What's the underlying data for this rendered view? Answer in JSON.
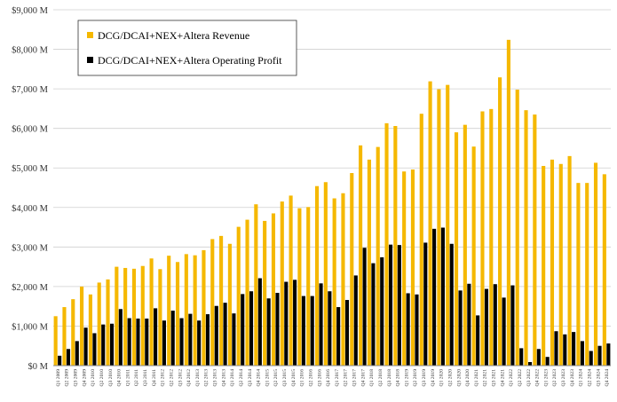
{
  "chart_data": {
    "type": "bar",
    "title": "",
    "xlabel": "",
    "ylabel": "",
    "ylim": [
      0,
      9000
    ],
    "ytick_values": [
      0,
      1000,
      2000,
      3000,
      4000,
      5000,
      6000,
      7000,
      8000,
      9000
    ],
    "ytick_labels": [
      "$0 M",
      "$1,000 M",
      "$2,000 M",
      "$3,000 M",
      "$4,000 M",
      "$5,000 M",
      "$6,000 M",
      "$7,000 M",
      "$8,000 M",
      "$9,000 M"
    ],
    "grid": "horizontal",
    "legend_position": "top-left",
    "categories": [
      "Q1 2009",
      "Q2 2009",
      "Q3 2009",
      "Q4 2009",
      "Q1 2010",
      "Q2 2010",
      "Q3 2010",
      "Q4 2010",
      "Q1 2011",
      "Q2 2011",
      "Q3 2011",
      "Q4 2011",
      "Q1 2012",
      "Q2 2012",
      "Q3 2012",
      "Q4 2012",
      "Q1 2013",
      "Q2 2013",
      "Q3 2013",
      "Q4 2013",
      "Q1 2014",
      "Q2 2014",
      "Q3 2014",
      "Q4 2014",
      "Q1 2015",
      "Q2 2015",
      "Q3 2015",
      "Q4 2015",
      "Q1 2016",
      "Q2 2016",
      "Q3 2016",
      "Q4 2016",
      "Q1 2017",
      "Q2 2017",
      "Q3 2017",
      "Q4 2017",
      "Q1 2018",
      "Q2 2018",
      "Q3 2018",
      "Q4 2018",
      "Q1 2019",
      "Q2 2019",
      "Q3 2019",
      "Q4 2019",
      "Q1 2020",
      "Q2 2020",
      "Q3 2020",
      "Q4 2020",
      "Q1 2021",
      "Q2 2021",
      "Q3 2021",
      "Q4 2021",
      "Q1 2022",
      "Q2 2022",
      "Q3 2022",
      "Q4 2022",
      "Q1 2023",
      "Q2 2023",
      "Q3 2023",
      "Q4 2023",
      "Q1 2024",
      "Q2 2024",
      "Q3 2024",
      "Q4 2024"
    ],
    "series": [
      {
        "name": "DCG/DCAI+NEX+Altera Revenue",
        "color": "#F5B800",
        "values": [
          1250,
          1480,
          1680,
          2000,
          1800,
          2100,
          2180,
          2500,
          2470,
          2450,
          2520,
          2710,
          2440,
          2780,
          2620,
          2820,
          2790,
          2920,
          3200,
          3280,
          3080,
          3510,
          3690,
          4080,
          3660,
          3850,
          4150,
          4300,
          3980,
          4010,
          4540,
          4640,
          4230,
          4360,
          4870,
          5570,
          5210,
          5530,
          6130,
          6060,
          4910,
          4960,
          6370,
          7190,
          6990,
          7100,
          5900,
          6090,
          5540,
          6430,
          6490,
          7290,
          8240,
          6980,
          6460,
          6350,
          5050,
          5210,
          5100,
          5300,
          4620,
          4620,
          5130,
          4840
        ]
      },
      {
        "name": "DCG/DCAI+NEX+Altera Operating Profit",
        "color": "#000000",
        "values": [
          250,
          420,
          620,
          960,
          820,
          1040,
          1060,
          1430,
          1200,
          1190,
          1190,
          1450,
          1140,
          1390,
          1200,
          1310,
          1140,
          1300,
          1510,
          1590,
          1320,
          1810,
          1880,
          2210,
          1700,
          1840,
          2120,
          2170,
          1760,
          1760,
          2080,
          1880,
          1480,
          1660,
          2280,
          2980,
          2590,
          2740,
          3060,
          3050,
          1830,
          1800,
          3110,
          3460,
          3490,
          3080,
          1900,
          2070,
          1270,
          1940,
          2060,
          1720,
          2030,
          440,
          90,
          420,
          220,
          870,
          790,
          850,
          620,
          370,
          500,
          560
        ]
      }
    ]
  }
}
